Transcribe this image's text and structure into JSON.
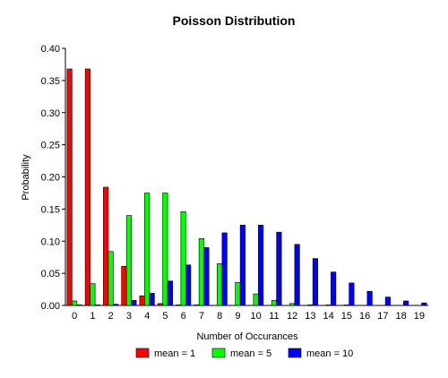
{
  "chart_data": {
    "type": "bar",
    "title": "Poisson Distribution",
    "xlabel": "Number of Occurances",
    "ylabel": "Probability",
    "ylim": [
      0,
      0.4
    ],
    "yticks": [
      "0.00",
      "0.05",
      "0.10",
      "0.15",
      "0.20",
      "0.25",
      "0.30",
      "0.35",
      "0.40"
    ],
    "categories": [
      "0",
      "1",
      "2",
      "3",
      "4",
      "5",
      "6",
      "7",
      "8",
      "9",
      "10",
      "11",
      "12",
      "13",
      "14",
      "15",
      "16",
      "17",
      "18",
      "19"
    ],
    "grid": false,
    "legend_position": "bottom",
    "series": [
      {
        "name": "mean = 1",
        "color": "#ff0000",
        "values": [
          0.368,
          0.368,
          0.184,
          0.061,
          0.015,
          0.003,
          0.0005,
          0.0001,
          0,
          0,
          0,
          0,
          0,
          0,
          0,
          0,
          0,
          0,
          0,
          0
        ]
      },
      {
        "name": "mean = 5",
        "color": "#00ff00",
        "values": [
          0.007,
          0.034,
          0.084,
          0.14,
          0.175,
          0.175,
          0.146,
          0.104,
          0.065,
          0.036,
          0.018,
          0.008,
          0.003,
          0.001,
          0.0005,
          0.0002,
          0,
          0,
          0,
          0
        ]
      },
      {
        "name": "mean = 10",
        "color": "#0000ff",
        "values": [
          5e-05,
          0.0005,
          0.002,
          0.008,
          0.019,
          0.038,
          0.063,
          0.09,
          0.113,
          0.125,
          0.125,
          0.114,
          0.095,
          0.073,
          0.052,
          0.035,
          0.022,
          0.013,
          0.007,
          0.004
        ]
      }
    ]
  }
}
